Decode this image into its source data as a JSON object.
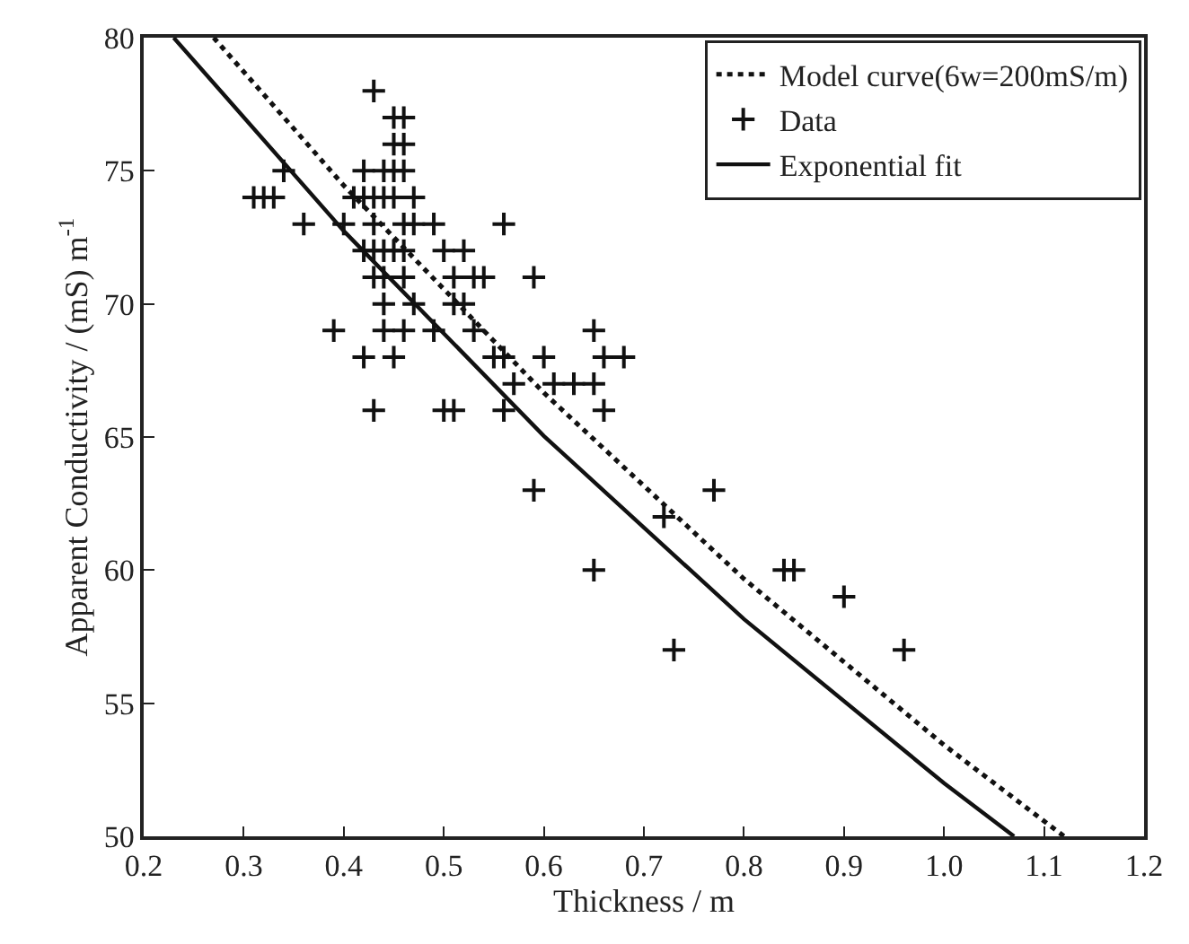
{
  "chart_data": {
    "type": "scatter",
    "xlabel": "Thickness / m",
    "ylabel": "Apparent Conductivity / (mS) m$^{-1}$",
    "xlim": [
      0.2,
      1.2
    ],
    "ylim": [
      50,
      80
    ],
    "xticks": [
      0.2,
      0.3,
      0.4,
      0.5,
      0.6,
      0.7,
      0.8,
      0.9,
      {
        "value": 1.0,
        "label": "1.0"
      },
      1.1,
      1.2
    ],
    "yticks": [
      50,
      55,
      60,
      65,
      70,
      75,
      80
    ],
    "grid": false,
    "legend": "top right",
    "series": [
      {
        "name": "Model curve(6w=200mS/m)",
        "type": "line",
        "color": "#111111",
        "line_style": "dotted",
        "marker": "none",
        "x": [
          0.27,
          0.4,
          0.6,
          0.8,
          1.0,
          1.12
        ],
        "values": [
          80,
          74.45,
          66.66,
          59.67,
          53.43,
          50
        ]
      },
      {
        "name": "Data",
        "color": "#111111",
        "marker": "cross",
        "x": [
          0.43,
          0.45,
          0.46,
          0.45,
          0.46,
          0.42,
          0.44,
          0.45,
          0.46,
          0.34,
          0.31,
          0.32,
          0.33,
          0.41,
          0.42,
          0.43,
          0.44,
          0.45,
          0.47,
          0.36,
          0.4,
          0.43,
          0.46,
          0.47,
          0.49,
          0.56,
          0.42,
          0.43,
          0.44,
          0.45,
          0.46,
          0.5,
          0.52,
          0.43,
          0.44,
          0.46,
          0.51,
          0.53,
          0.54,
          0.59,
          0.44,
          0.47,
          0.51,
          0.52,
          0.39,
          0.44,
          0.46,
          0.49,
          0.53,
          0.65,
          0.42,
          0.45,
          0.55,
          0.56,
          0.6,
          0.66,
          0.68,
          0.57,
          0.61,
          0.63,
          0.65,
          0.43,
          0.5,
          0.51,
          0.56,
          0.66,
          0.59,
          0.77,
          0.72,
          0.84,
          0.85,
          0.65,
          0.9,
          0.73,
          0.96
        ],
        "values": [
          78,
          77,
          77,
          76,
          76,
          75,
          75,
          75,
          75,
          75,
          74,
          74,
          74,
          74,
          74,
          74,
          74,
          74,
          74,
          73,
          73,
          73,
          73,
          73,
          73,
          73,
          72,
          72,
          72,
          72,
          72,
          72,
          72,
          71,
          71,
          71,
          71,
          71,
          71,
          71,
          70,
          70,
          70,
          70,
          69,
          69,
          69,
          69,
          69,
          69,
          68,
          68,
          68,
          68,
          68,
          68,
          68,
          67,
          67,
          67,
          67,
          66,
          66,
          66,
          66,
          66,
          63,
          63,
          62,
          60,
          60,
          60,
          59,
          57,
          57
        ]
      },
      {
        "name": "Exponential fit",
        "type": "line",
        "color": "#111111",
        "line_style": "solid",
        "marker": "none",
        "x": [
          0.23,
          0.4,
          0.6,
          0.8,
          1.0,
          1.07
        ],
        "values": [
          80,
          72.74,
          65.04,
          58.16,
          52.0,
          50
        ]
      }
    ]
  }
}
